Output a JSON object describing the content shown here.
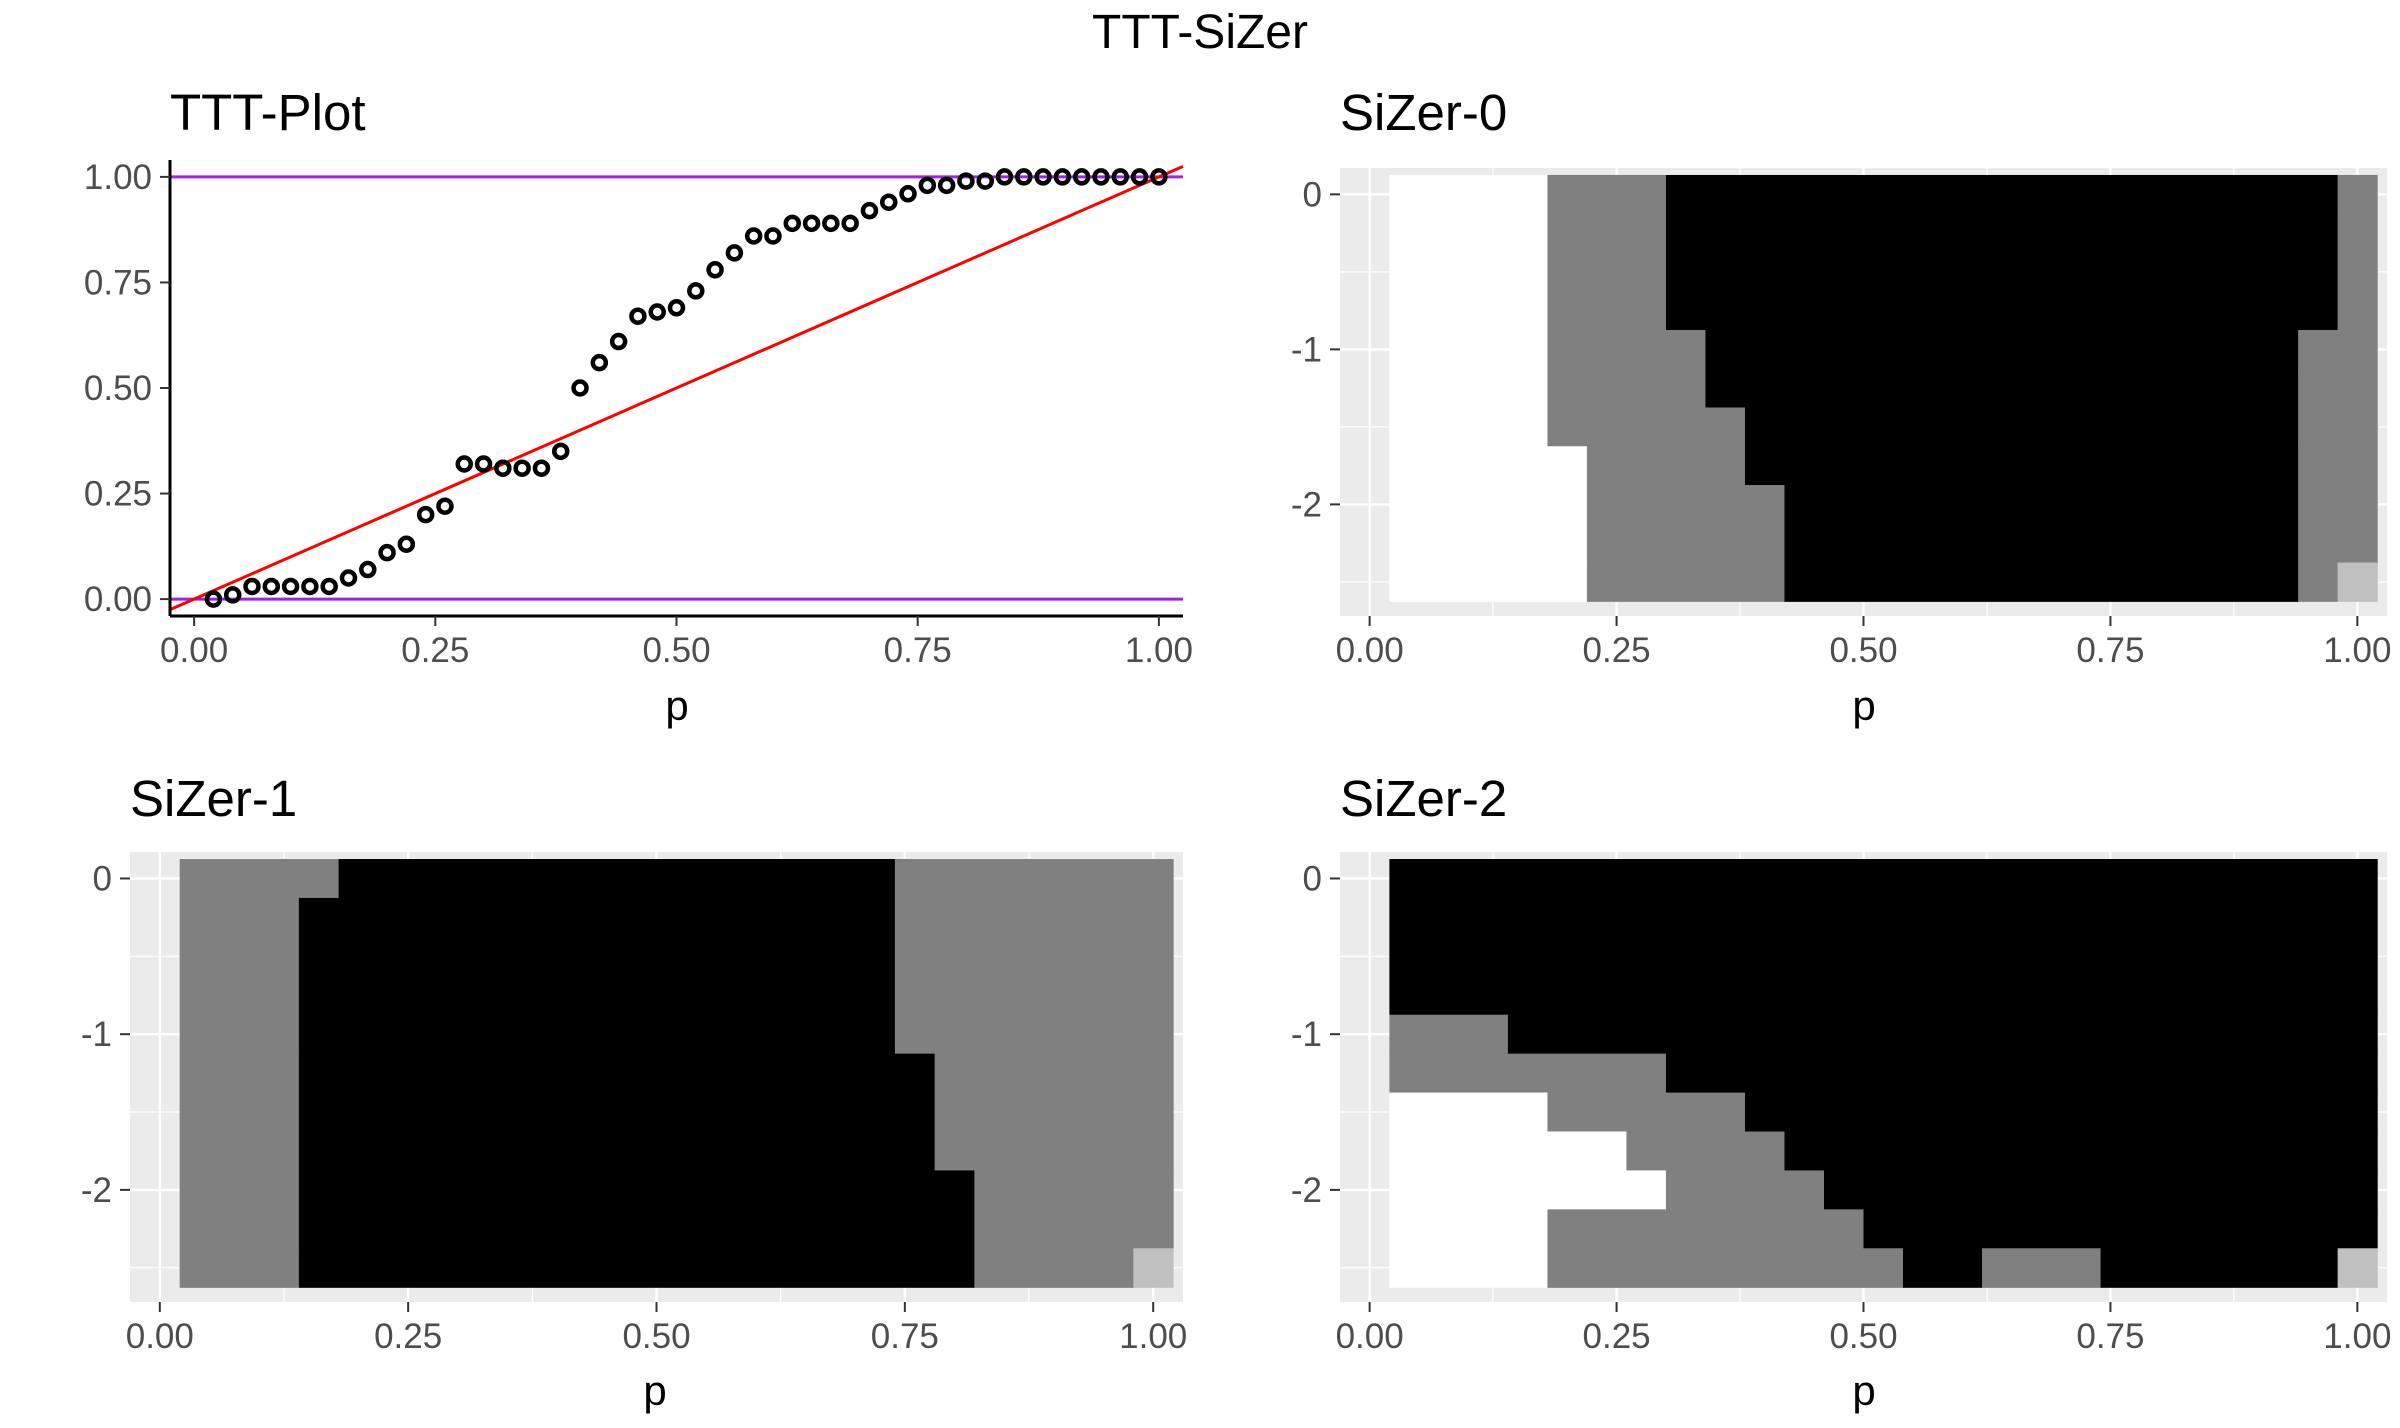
{
  "figure_title": "TTT-SiZer",
  "chart_data": [
    {
      "type": "scatter",
      "title": "TTT-Plot",
      "xlabel": "p",
      "ylabel": "",
      "xlim": [
        -0.025,
        1.025
      ],
      "ylim": [
        -0.04,
        1.04
      ],
      "grid": false,
      "x_ticks": [
        "0.00",
        "0.25",
        "0.50",
        "0.75",
        "1.00"
      ],
      "y_ticks": [
        "0.00",
        "0.25",
        "0.50",
        "0.75",
        "1.00"
      ],
      "points": {
        "x": [
          0.02,
          0.04,
          0.06,
          0.08,
          0.1,
          0.12,
          0.14,
          0.16,
          0.18,
          0.2,
          0.22,
          0.24,
          0.26,
          0.28,
          0.3,
          0.32,
          0.34,
          0.36,
          0.38,
          0.4,
          0.42,
          0.44,
          0.46,
          0.48,
          0.5,
          0.52,
          0.54,
          0.56,
          0.58,
          0.6,
          0.62,
          0.64,
          0.66,
          0.68,
          0.7,
          0.72,
          0.74,
          0.76,
          0.78,
          0.8,
          0.82,
          0.84,
          0.86,
          0.88,
          0.9,
          0.92,
          0.94,
          0.96,
          0.98,
          1.0
        ],
        "y": [
          0.0,
          0.01,
          0.03,
          0.03,
          0.03,
          0.03,
          0.03,
          0.05,
          0.07,
          0.11,
          0.13,
          0.2,
          0.22,
          0.32,
          0.32,
          0.31,
          0.31,
          0.31,
          0.35,
          0.5,
          0.56,
          0.61,
          0.67,
          0.68,
          0.69,
          0.73,
          0.78,
          0.82,
          0.86,
          0.86,
          0.89,
          0.89,
          0.89,
          0.89,
          0.92,
          0.94,
          0.96,
          0.98,
          0.98,
          0.99,
          0.99,
          1.0,
          1.0,
          1.0,
          1.0,
          1.0,
          1.0,
          1.0,
          1.0,
          1.0
        ]
      },
      "reference_lines": [
        {
          "kind": "hline",
          "y": 1.0,
          "color": "#a020f0"
        },
        {
          "kind": "hline",
          "y": 0.0,
          "color": "#a020f0"
        },
        {
          "kind": "diagonal",
          "from": [
            -0.025,
            -0.025
          ],
          "to": [
            1.025,
            1.025
          ],
          "color": "#ff0000"
        }
      ]
    },
    {
      "type": "heatmap",
      "title": "SiZer-0",
      "xlabel": "p",
      "ylabel": "",
      "xlim": [
        -0.03,
        1.03
      ],
      "ylim": [
        -2.72,
        0.17
      ],
      "x_ticks": [
        "0.00",
        "0.25",
        "0.50",
        "0.75",
        "1.00"
      ],
      "y_ticks": [
        "0",
        "-1",
        "-2"
      ],
      "y_tick_values": [
        0,
        -1,
        -2
      ],
      "rows": [
        {
          "y0": -0.125,
          "y1": 0.125,
          "cells": [
            [
              0.02,
              0.18,
              "#ffffff"
            ],
            [
              0.18,
              0.3,
              "#808080"
            ],
            [
              0.3,
              0.98,
              "#000000"
            ],
            [
              0.98,
              1.02,
              "#808080"
            ]
          ]
        },
        {
          "y0": -0.875,
          "y1": -0.125,
          "cells": [
            [
              0.02,
              0.18,
              "#ffffff"
            ],
            [
              0.18,
              0.3,
              "#808080"
            ],
            [
              0.3,
              0.98,
              "#000000"
            ],
            [
              0.98,
              1.02,
              "#808080"
            ]
          ]
        },
        {
          "y0": -1.125,
          "y1": -0.875,
          "cells": [
            [
              0.02,
              0.18,
              "#ffffff"
            ],
            [
              0.18,
              0.34,
              "#808080"
            ],
            [
              0.34,
              0.94,
              "#000000"
            ],
            [
              0.94,
              1.02,
              "#808080"
            ]
          ]
        },
        {
          "y0": -1.375,
          "y1": -1.125,
          "cells": [
            [
              0.02,
              0.18,
              "#ffffff"
            ],
            [
              0.18,
              0.34,
              "#808080"
            ],
            [
              0.34,
              0.94,
              "#000000"
            ],
            [
              0.94,
              1.02,
              "#808080"
            ]
          ]
        },
        {
          "y0": -1.625,
          "y1": -1.375,
          "cells": [
            [
              0.02,
              0.18,
              "#ffffff"
            ],
            [
              0.18,
              0.38,
              "#808080"
            ],
            [
              0.38,
              0.94,
              "#000000"
            ],
            [
              0.94,
              1.02,
              "#808080"
            ]
          ]
        },
        {
          "y0": -1.875,
          "y1": -1.625,
          "cells": [
            [
              0.02,
              0.22,
              "#ffffff"
            ],
            [
              0.22,
              0.38,
              "#808080"
            ],
            [
              0.38,
              0.94,
              "#000000"
            ],
            [
              0.94,
              1.02,
              "#808080"
            ]
          ]
        },
        {
          "y0": -2.375,
          "y1": -1.875,
          "cells": [
            [
              0.02,
              0.22,
              "#ffffff"
            ],
            [
              0.22,
              0.42,
              "#808080"
            ],
            [
              0.42,
              0.94,
              "#000000"
            ],
            [
              0.94,
              1.02,
              "#808080"
            ]
          ]
        },
        {
          "y0": -2.625,
          "y1": -2.375,
          "cells": [
            [
              0.02,
              0.22,
              "#ffffff"
            ],
            [
              0.22,
              0.42,
              "#808080"
            ],
            [
              0.42,
              0.94,
              "#000000"
            ],
            [
              0.94,
              0.98,
              "#808080"
            ],
            [
              0.98,
              1.02,
              "#c0c0c0"
            ]
          ]
        }
      ]
    },
    {
      "type": "heatmap",
      "title": "SiZer-1",
      "xlabel": "p",
      "ylabel": "",
      "xlim": [
        -0.03,
        1.03
      ],
      "ylim": [
        -2.72,
        0.17
      ],
      "x_ticks": [
        "0.00",
        "0.25",
        "0.50",
        "0.75",
        "1.00"
      ],
      "y_ticks": [
        "0",
        "-1",
        "-2"
      ],
      "y_tick_values": [
        0,
        -1,
        -2
      ],
      "rows": [
        {
          "y0": -0.125,
          "y1": 0.125,
          "cells": [
            [
              0.02,
              0.18,
              "#808080"
            ],
            [
              0.18,
              0.74,
              "#000000"
            ],
            [
              0.74,
              1.02,
              "#808080"
            ]
          ]
        },
        {
          "y0": -1.125,
          "y1": -0.125,
          "cells": [
            [
              0.02,
              0.14,
              "#808080"
            ],
            [
              0.14,
              0.74,
              "#000000"
            ],
            [
              0.74,
              1.02,
              "#808080"
            ]
          ]
        },
        {
          "y0": -1.875,
          "y1": -1.125,
          "cells": [
            [
              0.02,
              0.14,
              "#808080"
            ],
            [
              0.14,
              0.78,
              "#000000"
            ],
            [
              0.78,
              1.02,
              "#808080"
            ]
          ]
        },
        {
          "y0": -2.375,
          "y1": -1.875,
          "cells": [
            [
              0.02,
              0.14,
              "#808080"
            ],
            [
              0.14,
              0.82,
              "#000000"
            ],
            [
              0.82,
              1.02,
              "#808080"
            ]
          ]
        },
        {
          "y0": -2.625,
          "y1": -2.375,
          "cells": [
            [
              0.02,
              0.14,
              "#808080"
            ],
            [
              0.14,
              0.82,
              "#000000"
            ],
            [
              0.82,
              0.98,
              "#808080"
            ],
            [
              0.98,
              1.02,
              "#c0c0c0"
            ]
          ]
        }
      ]
    },
    {
      "type": "heatmap",
      "title": "SiZer-2",
      "xlabel": "p",
      "ylabel": "",
      "xlim": [
        -0.03,
        1.03
      ],
      "ylim": [
        -2.72,
        0.17
      ],
      "x_ticks": [
        "0.00",
        "0.25",
        "0.50",
        "0.75",
        "1.00"
      ],
      "y_ticks": [
        "0",
        "-1",
        "-2"
      ],
      "y_tick_values": [
        0,
        -1,
        -2
      ],
      "rows": [
        {
          "y0": -0.875,
          "y1": 0.125,
          "cells": [
            [
              0.02,
              1.02,
              "#000000"
            ]
          ]
        },
        {
          "y0": -1.125,
          "y1": -0.875,
          "cells": [
            [
              0.02,
              0.14,
              "#808080"
            ],
            [
              0.14,
              1.02,
              "#000000"
            ]
          ]
        },
        {
          "y0": -1.375,
          "y1": -1.125,
          "cells": [
            [
              0.02,
              0.3,
              "#808080"
            ],
            [
              0.3,
              1.02,
              "#000000"
            ]
          ]
        },
        {
          "y0": -1.625,
          "y1": -1.375,
          "cells": [
            [
              0.02,
              0.18,
              "#ffffff"
            ],
            [
              0.18,
              0.38,
              "#808080"
            ],
            [
              0.38,
              1.02,
              "#000000"
            ]
          ]
        },
        {
          "y0": -1.875,
          "y1": -1.625,
          "cells": [
            [
              0.02,
              0.26,
              "#ffffff"
            ],
            [
              0.26,
              0.42,
              "#808080"
            ],
            [
              0.42,
              1.02,
              "#000000"
            ]
          ]
        },
        {
          "y0": -2.125,
          "y1": -1.875,
          "cells": [
            [
              0.02,
              0.3,
              "#ffffff"
            ],
            [
              0.3,
              0.46,
              "#808080"
            ],
            [
              0.46,
              1.02,
              "#000000"
            ]
          ]
        },
        {
          "y0": -2.375,
          "y1": -2.125,
          "cells": [
            [
              0.02,
              0.18,
              "#ffffff"
            ],
            [
              0.18,
              0.5,
              "#808080"
            ],
            [
              0.5,
              1.02,
              "#000000"
            ]
          ]
        },
        {
          "y0": -2.625,
          "y1": -2.375,
          "cells": [
            [
              0.02,
              0.18,
              "#ffffff"
            ],
            [
              0.18,
              0.54,
              "#808080"
            ],
            [
              0.54,
              0.62,
              "#000000"
            ],
            [
              0.62,
              0.74,
              "#808080"
            ],
            [
              0.74,
              0.98,
              "#000000"
            ],
            [
              0.98,
              1.02,
              "#c0c0c0"
            ]
          ]
        }
      ]
    }
  ]
}
